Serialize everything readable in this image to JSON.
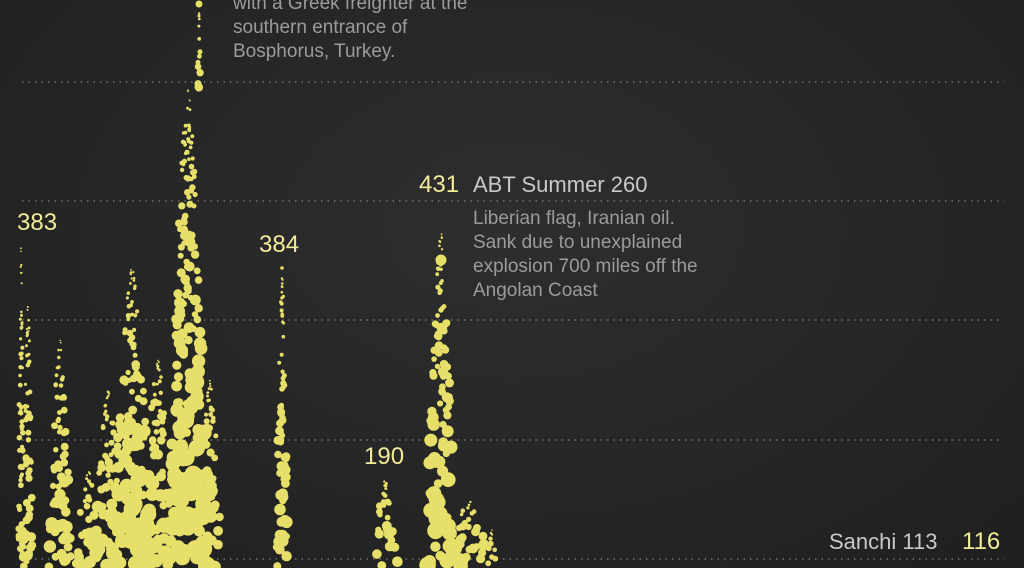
{
  "colors": {
    "background": "#262626",
    "dot": "#e6df6a",
    "count_label": "#f2ec9a",
    "grid": "#8a8a8a",
    "annotation": "#9b9b9b"
  },
  "chart_data": {
    "type": "scatter",
    "title": "",
    "xlabel": "",
    "ylabel": "",
    "grid": true,
    "peaks": [
      {
        "id": "p383",
        "label": "383"
      },
      {
        "id": "p384",
        "label": "384"
      },
      {
        "id": "p190",
        "label": "190"
      },
      {
        "id": "p431",
        "label": "431",
        "name": "ABT Summer 260"
      },
      {
        "id": "p116",
        "label": "116",
        "name": "Sanchi 113"
      }
    ],
    "annotations": [
      {
        "id": "top",
        "lines": [
          "with a Greek freighter at the",
          "southern entrance of",
          "Bosphorus, Turkey."
        ]
      },
      {
        "id": "abt",
        "lines": [
          "Liberian flag, Iranian oil.",
          "Sank due to unexplained",
          "explosion 700 miles off the",
          "Angolan Coast"
        ]
      }
    ]
  }
}
